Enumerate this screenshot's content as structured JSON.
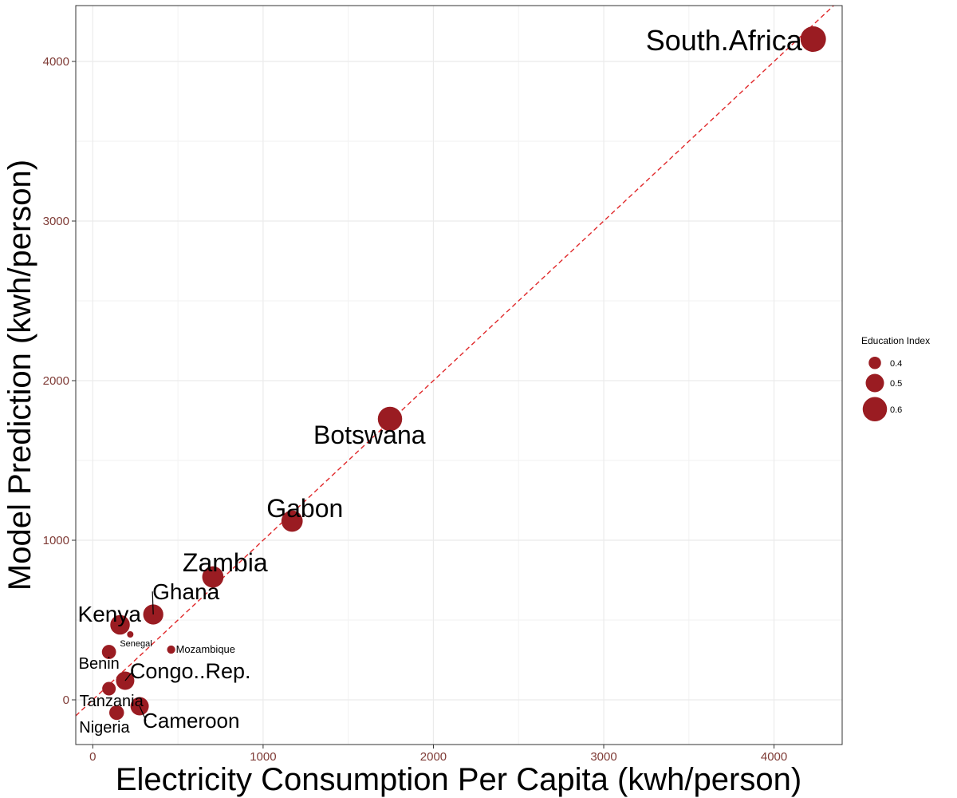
{
  "chart_data": {
    "type": "scatter",
    "xlabel": "Electricity Consumption Per Capita (kwh/person)",
    "ylabel": "Model Prediction (kwh/person)",
    "xlim": [
      -100,
      4400
    ],
    "ylim": [
      -280,
      4350
    ],
    "x_ticks": [
      0,
      1000,
      2000,
      3000,
      4000
    ],
    "y_ticks": [
      0,
      1000,
      2000,
      3000,
      4000
    ],
    "grid": true,
    "reference_line": {
      "type": "identity",
      "style": "dashed",
      "color": "#e0282a"
    },
    "point_color": "#9a1c22",
    "legend": {
      "title": "Education Index",
      "placement": "right",
      "entries": [
        {
          "label": "0.4",
          "value": 0.4
        },
        {
          "label": "0.5",
          "value": 0.5
        },
        {
          "label": "0.6",
          "value": 0.6
        }
      ]
    },
    "points": [
      {
        "name": "South.Africa",
        "x": 4230,
        "y": 4140,
        "edu": 0.62
      },
      {
        "name": "Botswana",
        "x": 1745,
        "y": 1760,
        "edu": 0.6
      },
      {
        "name": "Gabon",
        "x": 1170,
        "y": 1120,
        "edu": 0.55
      },
      {
        "name": "Zambia",
        "x": 705,
        "y": 770,
        "edu": 0.55
      },
      {
        "name": "Ghana",
        "x": 355,
        "y": 535,
        "edu": 0.53
      },
      {
        "name": "Kenya",
        "x": 160,
        "y": 470,
        "edu": 0.52
      },
      {
        "name": "Senegal",
        "x": 220,
        "y": 410,
        "edu": 0.3
      },
      {
        "name": "Mozambique",
        "x": 460,
        "y": 315,
        "edu": 0.33
      },
      {
        "name": "Benin",
        "x": 95,
        "y": 300,
        "edu": 0.43
      },
      {
        "name": "Congo..Rep.",
        "x": 190,
        "y": 120,
        "edu": 0.5
      },
      {
        "name": "Tanzania",
        "x": 95,
        "y": 70,
        "edu": 0.42
      },
      {
        "name": "Cameroon",
        "x": 275,
        "y": -40,
        "edu": 0.5
      },
      {
        "name": "Nigeria",
        "x": 140,
        "y": -80,
        "edu": 0.44
      }
    ]
  }
}
